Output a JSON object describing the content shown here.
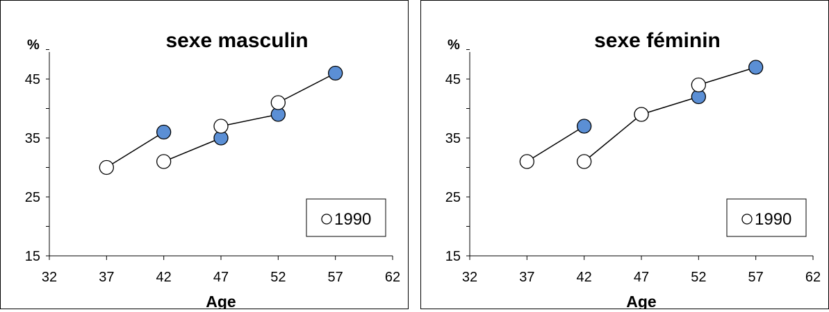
{
  "chart_data": [
    {
      "type": "scatter",
      "title": "sexe masculin",
      "xlabel": "Age",
      "ylabel": "%",
      "xlim": [
        32,
        62
      ],
      "ylim": [
        15,
        55
      ],
      "x_ticks": [
        32,
        37,
        42,
        47,
        52,
        57,
        62
      ],
      "y_ticks": [
        15,
        25,
        35,
        45
      ],
      "grid": false,
      "legend_position": "bottom-right",
      "legend": [
        "1990"
      ],
      "colors": {
        "1990": "#ffffff",
        "other": "#5b8fd5"
      },
      "segments": [
        [
          {
            "x": 37,
            "y": 30,
            "series": "1990"
          },
          {
            "x": 42,
            "y": 36,
            "series": "other"
          }
        ],
        [
          {
            "x": 42,
            "y": 31,
            "series": "1990"
          },
          {
            "x": 47,
            "y": 35,
            "series": "other"
          }
        ],
        [
          {
            "x": 47,
            "y": 37,
            "series": "1990"
          },
          {
            "x": 52,
            "y": 39,
            "series": "other"
          }
        ],
        [
          {
            "x": 52,
            "y": 41,
            "series": "1990"
          },
          {
            "x": 57,
            "y": 46,
            "series": "other"
          }
        ]
      ]
    },
    {
      "type": "scatter",
      "title": "sexe féminin",
      "xlabel": "Age",
      "ylabel": "%",
      "xlim": [
        32,
        62
      ],
      "ylim": [
        15,
        55
      ],
      "x_ticks": [
        32,
        37,
        42,
        47,
        52,
        57,
        62
      ],
      "y_ticks": [
        15,
        25,
        35,
        45
      ],
      "grid": false,
      "legend_position": "bottom-right",
      "legend": [
        "1990"
      ],
      "colors": {
        "1990": "#ffffff",
        "other": "#5b8fd5"
      },
      "segments": [
        [
          {
            "x": 37,
            "y": 31,
            "series": "1990"
          },
          {
            "x": 42,
            "y": 37,
            "series": "other"
          }
        ],
        [
          {
            "x": 42,
            "y": 31,
            "series": "1990"
          },
          {
            "x": 47,
            "y": 39,
            "series": "other"
          }
        ],
        [
          {
            "x": 47,
            "y": 39,
            "series": "1990"
          },
          {
            "x": 52,
            "y": 42,
            "series": "other"
          }
        ],
        [
          {
            "x": 52,
            "y": 44,
            "series": "1990"
          },
          {
            "x": 57,
            "y": 47,
            "series": "other"
          }
        ]
      ]
    }
  ]
}
